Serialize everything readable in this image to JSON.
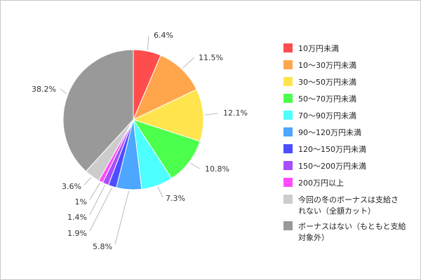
{
  "chart_data": {
    "type": "pie",
    "title": "",
    "start": "12 o'clock",
    "direction": "clockwise",
    "legend_position": "right",
    "slices": [
      {
        "label": "10万円未満",
        "value": 6.4,
        "value_label": "6.4%",
        "color": "#ff4d4d",
        "legend_lines": [
          "10万円未満"
        ]
      },
      {
        "label": "10〜30万円未満",
        "value": 11.5,
        "value_label": "11.5%",
        "color": "#ffa64d",
        "legend_lines": [
          "10〜30万円未満"
        ]
      },
      {
        "label": "30〜50万円未満",
        "value": 12.1,
        "value_label": "12.1%",
        "color": "#ffe44d",
        "legend_lines": [
          "30〜50万円未満"
        ]
      },
      {
        "label": "50〜70万円未満",
        "value": 10.8,
        "value_label": "10.8%",
        "color": "#4dff4d",
        "legend_lines": [
          "50〜70万円未満"
        ]
      },
      {
        "label": "70〜90万円未満",
        "value": 7.3,
        "value_label": "7.3%",
        "color": "#4dffff",
        "legend_lines": [
          "70〜90万円未満"
        ]
      },
      {
        "label": "90〜120万円未満",
        "value": 5.8,
        "value_label": "5.8%",
        "color": "#4da6ff",
        "legend_lines": [
          "90〜120万円未満"
        ]
      },
      {
        "label": "120〜150万円未満",
        "value": 1.9,
        "value_label": "1.9%",
        "color": "#4d4dff",
        "legend_lines": [
          "120〜150万円未満"
        ]
      },
      {
        "label": "150〜200万円未満",
        "value": 1.4,
        "value_label": "1.4%",
        "color": "#a64dff",
        "legend_lines": [
          "150〜200万円未満"
        ]
      },
      {
        "label": "200万円以上",
        "value": 1.0,
        "value_label": "1%",
        "color": "#ff4dff",
        "legend_lines": [
          "200万円以上"
        ]
      },
      {
        "label": "今回の冬のボーナスは支給されない（全額カット）",
        "value": 3.6,
        "value_label": "3.6%",
        "color": "#cccccc",
        "legend_lines": [
          "今回の冬のボーナスは支給さ",
          "れない（全額カット）"
        ]
      },
      {
        "label": "ボーナスはない（もともと支給対象外）",
        "value": 38.2,
        "value_label": "38.2%",
        "color": "#999999",
        "legend_lines": [
          "ボーナスはない（もともと支給",
          "対象外）"
        ]
      }
    ]
  }
}
